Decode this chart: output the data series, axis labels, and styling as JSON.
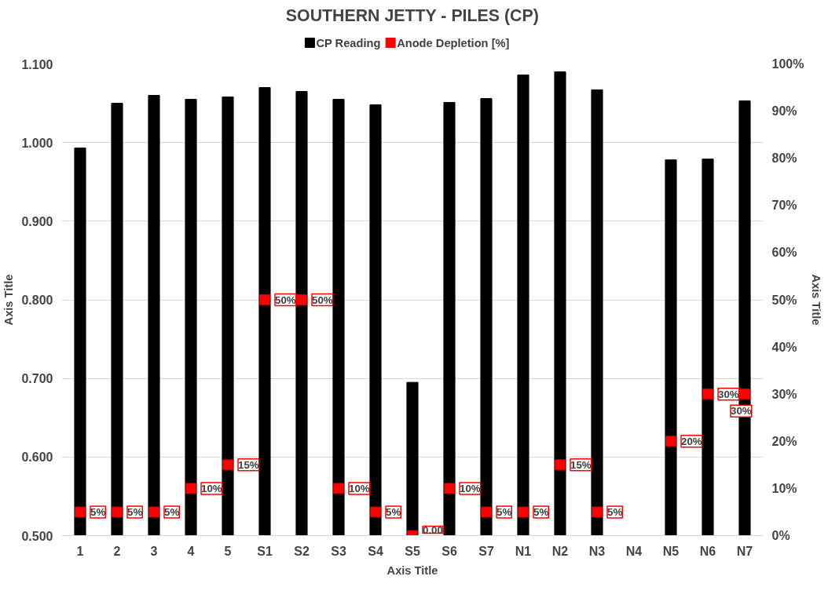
{
  "chart_data": {
    "type": "bar",
    "title": "SOUTHERN JETTY - PILES (CP)",
    "xlabel": "Axis Title",
    "ylabel": "Axis Title",
    "y2label": "Axis Title",
    "categories": [
      "1",
      "2",
      "3",
      "4",
      "5",
      "S1",
      "S2",
      "S3",
      "S4",
      "S5",
      "S6",
      "S7",
      "N1",
      "N2",
      "N3",
      "N4",
      "N5",
      "N6",
      "N7"
    ],
    "series": [
      {
        "name": "CP Reading",
        "color": "#000000",
        "values": [
          0.993,
          1.05,
          1.06,
          1.055,
          1.058,
          1.07,
          1.065,
          1.055,
          1.048,
          0.695,
          1.051,
          1.056,
          1.086,
          1.09,
          1.067,
          null,
          0.978,
          0.979,
          1.053
        ]
      },
      {
        "name": "Anode Depletion [%]",
        "type": "scatter",
        "axis": "y2",
        "marker": "square",
        "color": "#ff0000",
        "values": [
          5,
          5,
          5,
          10,
          15,
          50,
          50,
          10,
          5,
          0,
          10,
          5,
          5,
          15,
          5,
          null,
          20,
          30,
          30
        ],
        "value_labels": [
          "5%",
          "5%",
          "5%",
          "10%",
          "15%",
          "50%",
          "50%",
          "10%",
          "5%",
          "0.00",
          "10%",
          "5%",
          "5%",
          "15%",
          "5%",
          null,
          "20%",
          "30%",
          "30%"
        ]
      }
    ],
    "ylim": [
      0.5,
      1.1
    ],
    "yticks": [
      {
        "value": 0.5,
        "label": "0.500"
      },
      {
        "value": 0.6,
        "label": "0.600"
      },
      {
        "value": 0.7,
        "label": "0.700"
      },
      {
        "value": 0.8,
        "label": "0.800"
      },
      {
        "value": 0.9,
        "label": "0.900"
      },
      {
        "value": 1.0,
        "label": "1.000"
      },
      {
        "value": 1.1,
        "label": "1.100"
      }
    ],
    "y2lim": [
      0,
      100
    ],
    "y2ticks": [
      {
        "value": 0,
        "label": "0%"
      },
      {
        "value": 10,
        "label": "10%"
      },
      {
        "value": 20,
        "label": "20%"
      },
      {
        "value": 30,
        "label": "30%"
      },
      {
        "value": 40,
        "label": "40%"
      },
      {
        "value": 50,
        "label": "50%"
      },
      {
        "value": 60,
        "label": "60%"
      },
      {
        "value": 70,
        "label": "70%"
      },
      {
        "value": 80,
        "label": "80%"
      },
      {
        "value": 90,
        "label": "90%"
      },
      {
        "value": 100,
        "label": "100%"
      }
    ],
    "grid": "y",
    "legend": "top"
  }
}
